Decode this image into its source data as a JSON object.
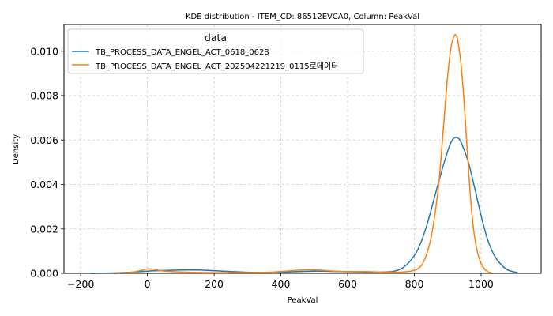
{
  "chart_data": {
    "type": "line",
    "title": "KDE distribution - ITEM_CD: 86512EVCA0, Column: PeakVal",
    "xlabel": "PeakVal",
    "ylabel": "Density",
    "xlim": [
      -250,
      1180
    ],
    "ylim": [
      0,
      0.0112
    ],
    "xticks": [
      -200,
      0,
      200,
      400,
      600,
      800,
      1000
    ],
    "xtick_labels": [
      "−200",
      "0",
      "200",
      "400",
      "600",
      "800",
      "1000"
    ],
    "yticks": [
      0,
      0.002,
      0.004,
      0.006,
      0.008,
      0.01
    ],
    "ytick_labels": [
      "0.000",
      "0.002",
      "0.004",
      "0.006",
      "0.008",
      "0.010"
    ],
    "grid": true,
    "legend": {
      "title": "data",
      "placement": "top-left",
      "entries": [
        "TB_PROCESS_DATA_ENGEL_ACT_0618_0628",
        "TB_PROCESS_DATA_ENGEL_ACT_202504221219_0115로데이터"
      ]
    },
    "series": [
      {
        "name": "TB_PROCESS_DATA_ENGEL_ACT_0618_0628",
        "color": "#1f77b4",
        "x": [
          -170,
          -100,
          -50,
          0,
          50,
          100,
          150,
          200,
          250,
          300,
          350,
          400,
          450,
          500,
          550,
          600,
          650,
          700,
          740,
          770,
          800,
          820,
          840,
          860,
          880,
          900,
          910,
          920,
          930,
          940,
          960,
          980,
          1000,
          1020,
          1040,
          1060,
          1080,
          1110
        ],
        "y": [
          0.0,
          2e-05,
          5e-05,
          0.0001,
          0.00013,
          0.00015,
          0.00015,
          0.00012,
          8e-05,
          5e-05,
          4e-05,
          5e-05,
          8e-05,
          0.0001,
          9e-05,
          7e-05,
          6e-05,
          6e-05,
          0.0001,
          0.0003,
          0.0008,
          0.0014,
          0.0023,
          0.0034,
          0.0045,
          0.0055,
          0.0059,
          0.0061,
          0.0061,
          0.0059,
          0.0051,
          0.0039,
          0.0026,
          0.0015,
          0.0008,
          0.0004,
          0.00015,
          3e-05
        ]
      },
      {
        "name": "TB_PROCESS_DATA_ENGEL_ACT_202504221219_0115로데이터",
        "color": "#ff7f0e",
        "x": [
          -100,
          -50,
          -20,
          0,
          20,
          40,
          70,
          100,
          150,
          200,
          250,
          300,
          350,
          400,
          450,
          480,
          520,
          560,
          600,
          650,
          700,
          740,
          780,
          810,
          830,
          850,
          870,
          880,
          890,
          900,
          910,
          920,
          925,
          930,
          940,
          950,
          960,
          970,
          980,
          990,
          1000,
          1010,
          1020,
          1035
        ],
        "y": [
          0.0,
          4e-05,
          0.00013,
          0.0002,
          0.00018,
          0.00012,
          8e-05,
          6e-05,
          4e-05,
          3e-05,
          3e-05,
          3e-05,
          4e-05,
          8e-05,
          0.00014,
          0.00016,
          0.00014,
          0.0001,
          8e-05,
          8e-05,
          6e-05,
          5e-05,
          8e-05,
          0.0002,
          0.0006,
          0.0016,
          0.0036,
          0.0052,
          0.0071,
          0.0089,
          0.0102,
          0.0107,
          0.0107,
          0.0105,
          0.0094,
          0.0075,
          0.0052,
          0.0031,
          0.0017,
          0.0009,
          0.00045,
          0.0002,
          8e-05,
          0.0
        ]
      }
    ]
  }
}
